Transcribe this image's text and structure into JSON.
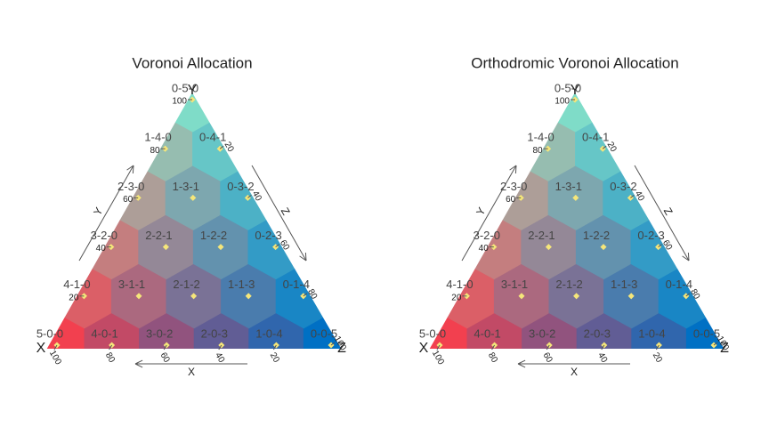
{
  "chart_data": [
    {
      "type": "ternary",
      "title": "Voronoi Allocation",
      "corner_labels": [
        "X",
        "Y",
        "Z"
      ],
      "axis_titles": [
        "X",
        "Y",
        "Z"
      ],
      "corner_colors": [
        "#f2404f",
        "#7fdcc8",
        "#0070c4"
      ],
      "point_color": "#f5e67a",
      "xticks": [
        100,
        80,
        60,
        40,
        20
      ],
      "yticks": [
        100,
        80,
        60,
        40,
        20
      ],
      "zticks": [
        20,
        40,
        60,
        80,
        100
      ],
      "points": [
        {
          "label": "5-0-0",
          "x": 100,
          "y": 0,
          "z": 0
        },
        {
          "label": "4-0-1",
          "x": 80,
          "y": 0,
          "z": 20
        },
        {
          "label": "3-0-2",
          "x": 60,
          "y": 0,
          "z": 40
        },
        {
          "label": "2-0-3",
          "x": 40,
          "y": 0,
          "z": 60
        },
        {
          "label": "1-0-4",
          "x": 20,
          "y": 0,
          "z": 80
        },
        {
          "label": "0-0-5",
          "x": 0,
          "y": 0,
          "z": 100
        },
        {
          "label": "4-1-0",
          "x": 80,
          "y": 20,
          "z": 0
        },
        {
          "label": "3-1-1",
          "x": 60,
          "y": 20,
          "z": 20
        },
        {
          "label": "2-1-2",
          "x": 40,
          "y": 20,
          "z": 40
        },
        {
          "label": "1-1-3",
          "x": 20,
          "y": 20,
          "z": 60
        },
        {
          "label": "0-1-4",
          "x": 0,
          "y": 20,
          "z": 80
        },
        {
          "label": "3-2-0",
          "x": 60,
          "y": 40,
          "z": 0
        },
        {
          "label": "2-2-1",
          "x": 40,
          "y": 40,
          "z": 20
        },
        {
          "label": "1-2-2",
          "x": 20,
          "y": 40,
          "z": 40
        },
        {
          "label": "0-2-3",
          "x": 0,
          "y": 40,
          "z": 60
        },
        {
          "label": "2-3-0",
          "x": 40,
          "y": 60,
          "z": 0
        },
        {
          "label": "1-3-1",
          "x": 20,
          "y": 60,
          "z": 20
        },
        {
          "label": "0-3-2",
          "x": 0,
          "y": 60,
          "z": 40
        },
        {
          "label": "1-4-0",
          "x": 20,
          "y": 80,
          "z": 0
        },
        {
          "label": "0-4-1",
          "x": 0,
          "y": 80,
          "z": 20
        },
        {
          "label": "0-5-0",
          "x": 0,
          "y": 100,
          "z": 0
        }
      ]
    },
    {
      "type": "ternary",
      "title": "Orthodromic Voronoi Allocation",
      "corner_labels": [
        "X",
        "Y",
        "Z"
      ],
      "axis_titles": [
        "X",
        "Y",
        "Z"
      ],
      "corner_colors": [
        "#f2404f",
        "#7fdcc8",
        "#0070c4"
      ],
      "point_color": "#f5e67a",
      "xticks": [
        100,
        80,
        60,
        40,
        20
      ],
      "yticks": [
        100,
        80,
        60,
        40,
        20
      ],
      "zticks": [
        20,
        40,
        60,
        80,
        100
      ],
      "points": [
        {
          "label": "5-0-0",
          "x": 100,
          "y": 0,
          "z": 0
        },
        {
          "label": "4-0-1",
          "x": 80,
          "y": 0,
          "z": 20
        },
        {
          "label": "3-0-2",
          "x": 60,
          "y": 0,
          "z": 40
        },
        {
          "label": "2-0-3",
          "x": 40,
          "y": 0,
          "z": 60
        },
        {
          "label": "1-0-4",
          "x": 20,
          "y": 0,
          "z": 80
        },
        {
          "label": "0-0-5",
          "x": 0,
          "y": 0,
          "z": 100
        },
        {
          "label": "4-1-0",
          "x": 80,
          "y": 20,
          "z": 0
        },
        {
          "label": "3-1-1",
          "x": 60,
          "y": 20,
          "z": 20
        },
        {
          "label": "2-1-2",
          "x": 40,
          "y": 20,
          "z": 40
        },
        {
          "label": "1-1-3",
          "x": 20,
          "y": 20,
          "z": 60
        },
        {
          "label": "0-1-4",
          "x": 0,
          "y": 20,
          "z": 80
        },
        {
          "label": "3-2-0",
          "x": 60,
          "y": 40,
          "z": 0
        },
        {
          "label": "2-2-1",
          "x": 40,
          "y": 40,
          "z": 20
        },
        {
          "label": "1-2-2",
          "x": 20,
          "y": 40,
          "z": 40
        },
        {
          "label": "0-2-3",
          "x": 0,
          "y": 40,
          "z": 60
        },
        {
          "label": "2-3-0",
          "x": 40,
          "y": 60,
          "z": 0
        },
        {
          "label": "1-3-1",
          "x": 20,
          "y": 60,
          "z": 20
        },
        {
          "label": "0-3-2",
          "x": 0,
          "y": 60,
          "z": 40
        },
        {
          "label": "1-4-0",
          "x": 20,
          "y": 80,
          "z": 0
        },
        {
          "label": "0-4-1",
          "x": 0,
          "y": 80,
          "z": 20
        },
        {
          "label": "0-5-0",
          "x": 0,
          "y": 100,
          "z": 0
        }
      ]
    }
  ]
}
